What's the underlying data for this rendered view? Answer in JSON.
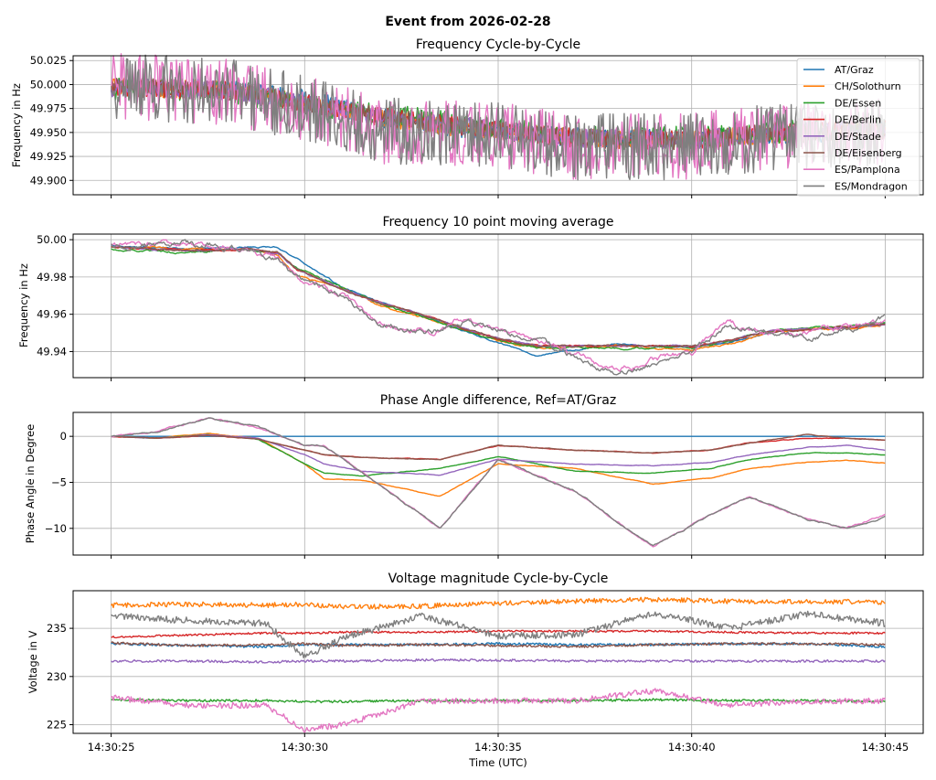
{
  "figure": {
    "suptitle": "Event from 2026-02-28",
    "xlabel": "Time (UTC)",
    "x_tick_labels": [
      "14:30:25",
      "14:30:30",
      "14:30:35",
      "14:30:40",
      "14:30:45"
    ]
  },
  "legend": {
    "entries": [
      {
        "name": "AT/Graz",
        "color": "#1f77b4"
      },
      {
        "name": "CH/Solothurn",
        "color": "#ff7f0e"
      },
      {
        "name": "DE/Essen",
        "color": "#2ca02c"
      },
      {
        "name": "DE/Berlin",
        "color": "#d62728"
      },
      {
        "name": "DE/Stade",
        "color": "#9467bd"
      },
      {
        "name": "DE/Eisenberg",
        "color": "#8c564b"
      },
      {
        "name": "ES/Pamplona",
        "color": "#e377c2"
      },
      {
        "name": "ES/Mondragon",
        "color": "#7f7f7f"
      }
    ]
  },
  "chart_data": [
    {
      "type": "line",
      "title": "Frequency Cycle-by-Cycle",
      "ylabel": "Frequency in Hz",
      "xlim": [
        0,
        20
      ],
      "ylim": [
        49.885,
        50.03
      ],
      "yticks": [
        49.9,
        49.925,
        49.95,
        49.975,
        50.0,
        50.025
      ],
      "ytick_labels": [
        "49.900",
        "49.925",
        "49.950",
        "49.975",
        "50.000",
        "50.025"
      ],
      "x": [
        0,
        3,
        5,
        7,
        10,
        12,
        15,
        17,
        20
      ],
      "series": [
        {
          "name": "AT/Graz",
          "values": [
            49.998,
            49.995,
            49.985,
            49.965,
            49.95,
            49.945,
            49.942,
            49.948,
            49.952
          ],
          "noise": 0.01
        },
        {
          "name": "CH/Solothurn",
          "values": [
            49.998,
            49.994,
            49.98,
            49.965,
            49.95,
            49.944,
            49.942,
            49.948,
            49.952
          ],
          "noise": 0.01
        },
        {
          "name": "DE/Essen",
          "values": [
            49.996,
            49.993,
            49.98,
            49.968,
            49.955,
            49.944,
            49.945,
            49.95,
            49.955
          ],
          "noise": 0.012
        },
        {
          "name": "DE/Berlin",
          "values": [
            49.997,
            49.994,
            49.98,
            49.966,
            49.952,
            49.944,
            49.942,
            49.95,
            49.953
          ],
          "noise": 0.01
        },
        {
          "name": "DE/Stade",
          "values": [
            49.997,
            49.994,
            49.98,
            49.966,
            49.952,
            49.944,
            49.942,
            49.95,
            49.953
          ],
          "noise": 0.01
        },
        {
          "name": "DE/Eisenberg",
          "values": [
            49.997,
            49.994,
            49.98,
            49.966,
            49.952,
            49.944,
            49.942,
            49.95,
            49.953
          ],
          "noise": 0.01
        },
        {
          "name": "ES/Pamplona",
          "values": [
            49.998,
            49.993,
            49.975,
            49.952,
            49.948,
            49.935,
            49.935,
            49.945,
            49.95
          ],
          "noise": 0.035
        },
        {
          "name": "ES/Mondragon",
          "values": [
            49.998,
            49.993,
            49.975,
            49.952,
            49.948,
            49.935,
            49.935,
            49.945,
            49.95
          ],
          "noise": 0.035
        }
      ]
    },
    {
      "type": "line",
      "title": "Frequency 10 point moving average",
      "ylabel": "Frequency in Hz",
      "xlim": [
        0,
        20
      ],
      "ylim": [
        49.926,
        50.003
      ],
      "yticks": [
        49.94,
        49.96,
        49.98,
        50.0
      ],
      "ytick_labels": [
        "49.94",
        "49.96",
        "49.98",
        "50.00"
      ],
      "x": [
        0,
        2,
        3.5,
        4.3,
        4.8,
        6,
        7,
        8.3,
        9,
        10,
        11,
        13,
        15,
        16,
        17,
        18,
        19,
        20
      ],
      "series": [
        {
          "name": "AT/Graz",
          "values": [
            49.997,
            49.995,
            49.996,
            49.996,
            49.99,
            49.974,
            49.966,
            49.958,
            49.952,
            49.945,
            49.938,
            49.944,
            49.942,
            49.945,
            49.95,
            49.952,
            49.953,
            49.955
          ],
          "noise": 0.0006
        },
        {
          "name": "CH/Solothurn",
          "values": [
            49.996,
            49.995,
            49.995,
            49.992,
            49.98,
            49.974,
            49.964,
            49.957,
            49.953,
            49.946,
            49.942,
            49.943,
            49.941,
            49.944,
            49.95,
            49.952,
            49.952,
            49.955
          ],
          "noise": 0.0008
        },
        {
          "name": "DE/Essen",
          "values": [
            49.995,
            49.993,
            49.995,
            49.993,
            49.985,
            49.974,
            49.965,
            49.957,
            49.952,
            49.946,
            49.942,
            49.942,
            49.942,
            49.946,
            49.951,
            49.953,
            49.953,
            49.956
          ],
          "noise": 0.0008
        },
        {
          "name": "DE/Berlin",
          "values": [
            49.996,
            49.994,
            49.995,
            49.993,
            49.984,
            49.973,
            49.966,
            49.958,
            49.953,
            49.947,
            49.943,
            49.943,
            49.943,
            49.946,
            49.951,
            49.952,
            49.953,
            49.955
          ],
          "noise": 0.0007
        },
        {
          "name": "DE/Stade",
          "values": [
            49.996,
            49.994,
            49.995,
            49.993,
            49.984,
            49.973,
            49.966,
            49.958,
            49.953,
            49.947,
            49.943,
            49.943,
            49.943,
            49.946,
            49.951,
            49.952,
            49.953,
            49.955
          ],
          "noise": 0.0007
        },
        {
          "name": "DE/Eisenberg",
          "values": [
            49.996,
            49.994,
            49.995,
            49.993,
            49.984,
            49.973,
            49.966,
            49.958,
            49.953,
            49.947,
            49.943,
            49.943,
            49.943,
            49.946,
            49.951,
            49.952,
            49.953,
            49.955
          ],
          "noise": 0.0007
        },
        {
          "name": "ES/Pamplona",
          "values": [
            49.997,
            49.998,
            49.995,
            49.99,
            49.98,
            49.97,
            49.955,
            49.95,
            49.957,
            49.952,
            49.946,
            49.93,
            49.94,
            49.955,
            49.95,
            49.95,
            49.953,
            49.958
          ],
          "noise": 0.0025
        },
        {
          "name": "ES/Mondragon",
          "values": [
            49.997,
            49.998,
            49.995,
            49.99,
            49.98,
            49.97,
            49.955,
            49.95,
            49.957,
            49.952,
            49.946,
            49.928,
            49.94,
            49.955,
            49.95,
            49.948,
            49.953,
            49.958
          ],
          "noise": 0.0025
        }
      ]
    },
    {
      "type": "line",
      "title": "Phase Angle difference, Ref=AT/Graz",
      "ylabel": "Phase Angle in Degree",
      "xlim": [
        0,
        20
      ],
      "ylim": [
        -12.9,
        2.6
      ],
      "yticks": [
        -10,
        -5,
        0
      ],
      "ytick_labels": [
        "−10",
        "−5",
        "0"
      ],
      "x": [
        0,
        1.2,
        2.5,
        3.8,
        5,
        5.5,
        6.5,
        8.5,
        10,
        12,
        14,
        15.5,
        16.5,
        18,
        19,
        20
      ],
      "series": [
        {
          "name": "AT/Graz",
          "values": [
            0,
            0,
            0,
            0,
            0,
            0,
            0,
            0,
            0,
            0,
            0,
            0,
            0,
            0,
            0,
            0
          ],
          "noise": 0
        },
        {
          "name": "CH/Solothurn",
          "values": [
            0,
            -0.2,
            0.3,
            -0.2,
            -3,
            -4.6,
            -4.8,
            -6.5,
            -3,
            -3.5,
            -5.2,
            -4.5,
            -3.5,
            -2.8,
            -2.6,
            -2.9
          ],
          "noise": 0.05
        },
        {
          "name": "DE/Essen",
          "values": [
            0,
            -0.2,
            0.2,
            -0.3,
            -3,
            -4,
            -4.3,
            -3.5,
            -2.2,
            -3.8,
            -4,
            -3.5,
            -2.5,
            -1.8,
            -1.8,
            -2
          ],
          "noise": 0.05
        },
        {
          "name": "DE/Berlin",
          "values": [
            0,
            -0.2,
            0.1,
            -0.3,
            -1.5,
            -2,
            -2.3,
            -2.5,
            -1,
            -1.5,
            -1.8,
            -1.5,
            -0.7,
            -0.2,
            -0.2,
            -0.4
          ],
          "noise": 0.05
        },
        {
          "name": "DE/Stade",
          "values": [
            0,
            -0.2,
            0.2,
            -0.2,
            -2,
            -3,
            -3.8,
            -4.2,
            -2.5,
            -3,
            -3.2,
            -2.8,
            -2,
            -1.2,
            -1,
            -1.5
          ],
          "noise": 0.05
        },
        {
          "name": "DE/Eisenberg",
          "values": [
            0,
            -0.2,
            0.1,
            -0.3,
            -1.5,
            -2,
            -2.3,
            -2.5,
            -1,
            -1.5,
            -1.8,
            -1.5,
            -0.7,
            0.2,
            -0.2,
            -0.4
          ],
          "noise": 0.05
        },
        {
          "name": "ES/Pamplona",
          "values": [
            0,
            0.5,
            2,
            1,
            -1,
            -1,
            -4,
            -10,
            -2.5,
            -6,
            -12,
            -8.5,
            -6.6,
            -9,
            -10,
            -8.5
          ],
          "noise": 0.12
        },
        {
          "name": "ES/Mondragon",
          "values": [
            0,
            0.5,
            2,
            1,
            -1,
            -1,
            -4,
            -10,
            -2.5,
            -6,
            -12,
            -8.5,
            -6.6,
            -9,
            -10,
            -8.8
          ],
          "noise": 0.12
        }
      ]
    },
    {
      "type": "line",
      "title": "Voltage magnitude Cycle-by-Cycle",
      "ylabel": "Voltage in V",
      "xlim": [
        0,
        20
      ],
      "ylim": [
        224.1,
        238.9
      ],
      "yticks": [
        225,
        230,
        235
      ],
      "ytick_labels": [
        "225",
        "230",
        "235"
      ],
      "x": [
        0,
        2,
        4,
        5,
        6,
        8,
        10,
        12,
        14,
        16,
        18,
        20
      ],
      "series": [
        {
          "name": "AT/Graz",
          "values": [
            233.4,
            233.2,
            233.1,
            233.3,
            233.3,
            233.3,
            233.4,
            233.3,
            233.3,
            233.4,
            233.4,
            233.1
          ],
          "noise": 0.12
        },
        {
          "name": "CH/Solothurn",
          "values": [
            237.4,
            237.5,
            237.4,
            237.5,
            237.2,
            237.3,
            237.6,
            237.8,
            238,
            237.8,
            237.8,
            237.7
          ],
          "noise": 0.25
        },
        {
          "name": "DE/Essen",
          "values": [
            227.6,
            227.5,
            227.5,
            227.4,
            227.4,
            227.5,
            227.5,
            227.5,
            227.6,
            227.5,
            227.5,
            227.4
          ],
          "noise": 0.12
        },
        {
          "name": "DE/Berlin",
          "values": [
            234.1,
            234.3,
            234.5,
            234.5,
            234.6,
            234.6,
            234.7,
            234.7,
            234.7,
            234.6,
            234.5,
            234.5
          ],
          "noise": 0.1
        },
        {
          "name": "DE/Stade",
          "values": [
            231.6,
            231.6,
            231.5,
            231.6,
            231.6,
            231.7,
            231.7,
            231.6,
            231.6,
            231.6,
            231.6,
            231.6
          ],
          "noise": 0.12
        },
        {
          "name": "DE/Eisenberg",
          "values": [
            233.5,
            233.2,
            233.3,
            233.4,
            233.2,
            233.3,
            233.2,
            233.1,
            233.3,
            233.4,
            233.4,
            233.3
          ],
          "noise": 0.12
        },
        {
          "name": "ES/Pamplona",
          "values": [
            227.8,
            227,
            227,
            224.5,
            225,
            227.4,
            227.5,
            227.5,
            228.5,
            227,
            227.4,
            227.5
          ],
          "noise": 0.3
        },
        {
          "name": "ES/Mondragon",
          "values": [
            236.3,
            235.8,
            235.5,
            232,
            234,
            236.3,
            234.2,
            234.3,
            236.6,
            235,
            236.5,
            235.5
          ],
          "noise": 0.35
        }
      ]
    }
  ]
}
